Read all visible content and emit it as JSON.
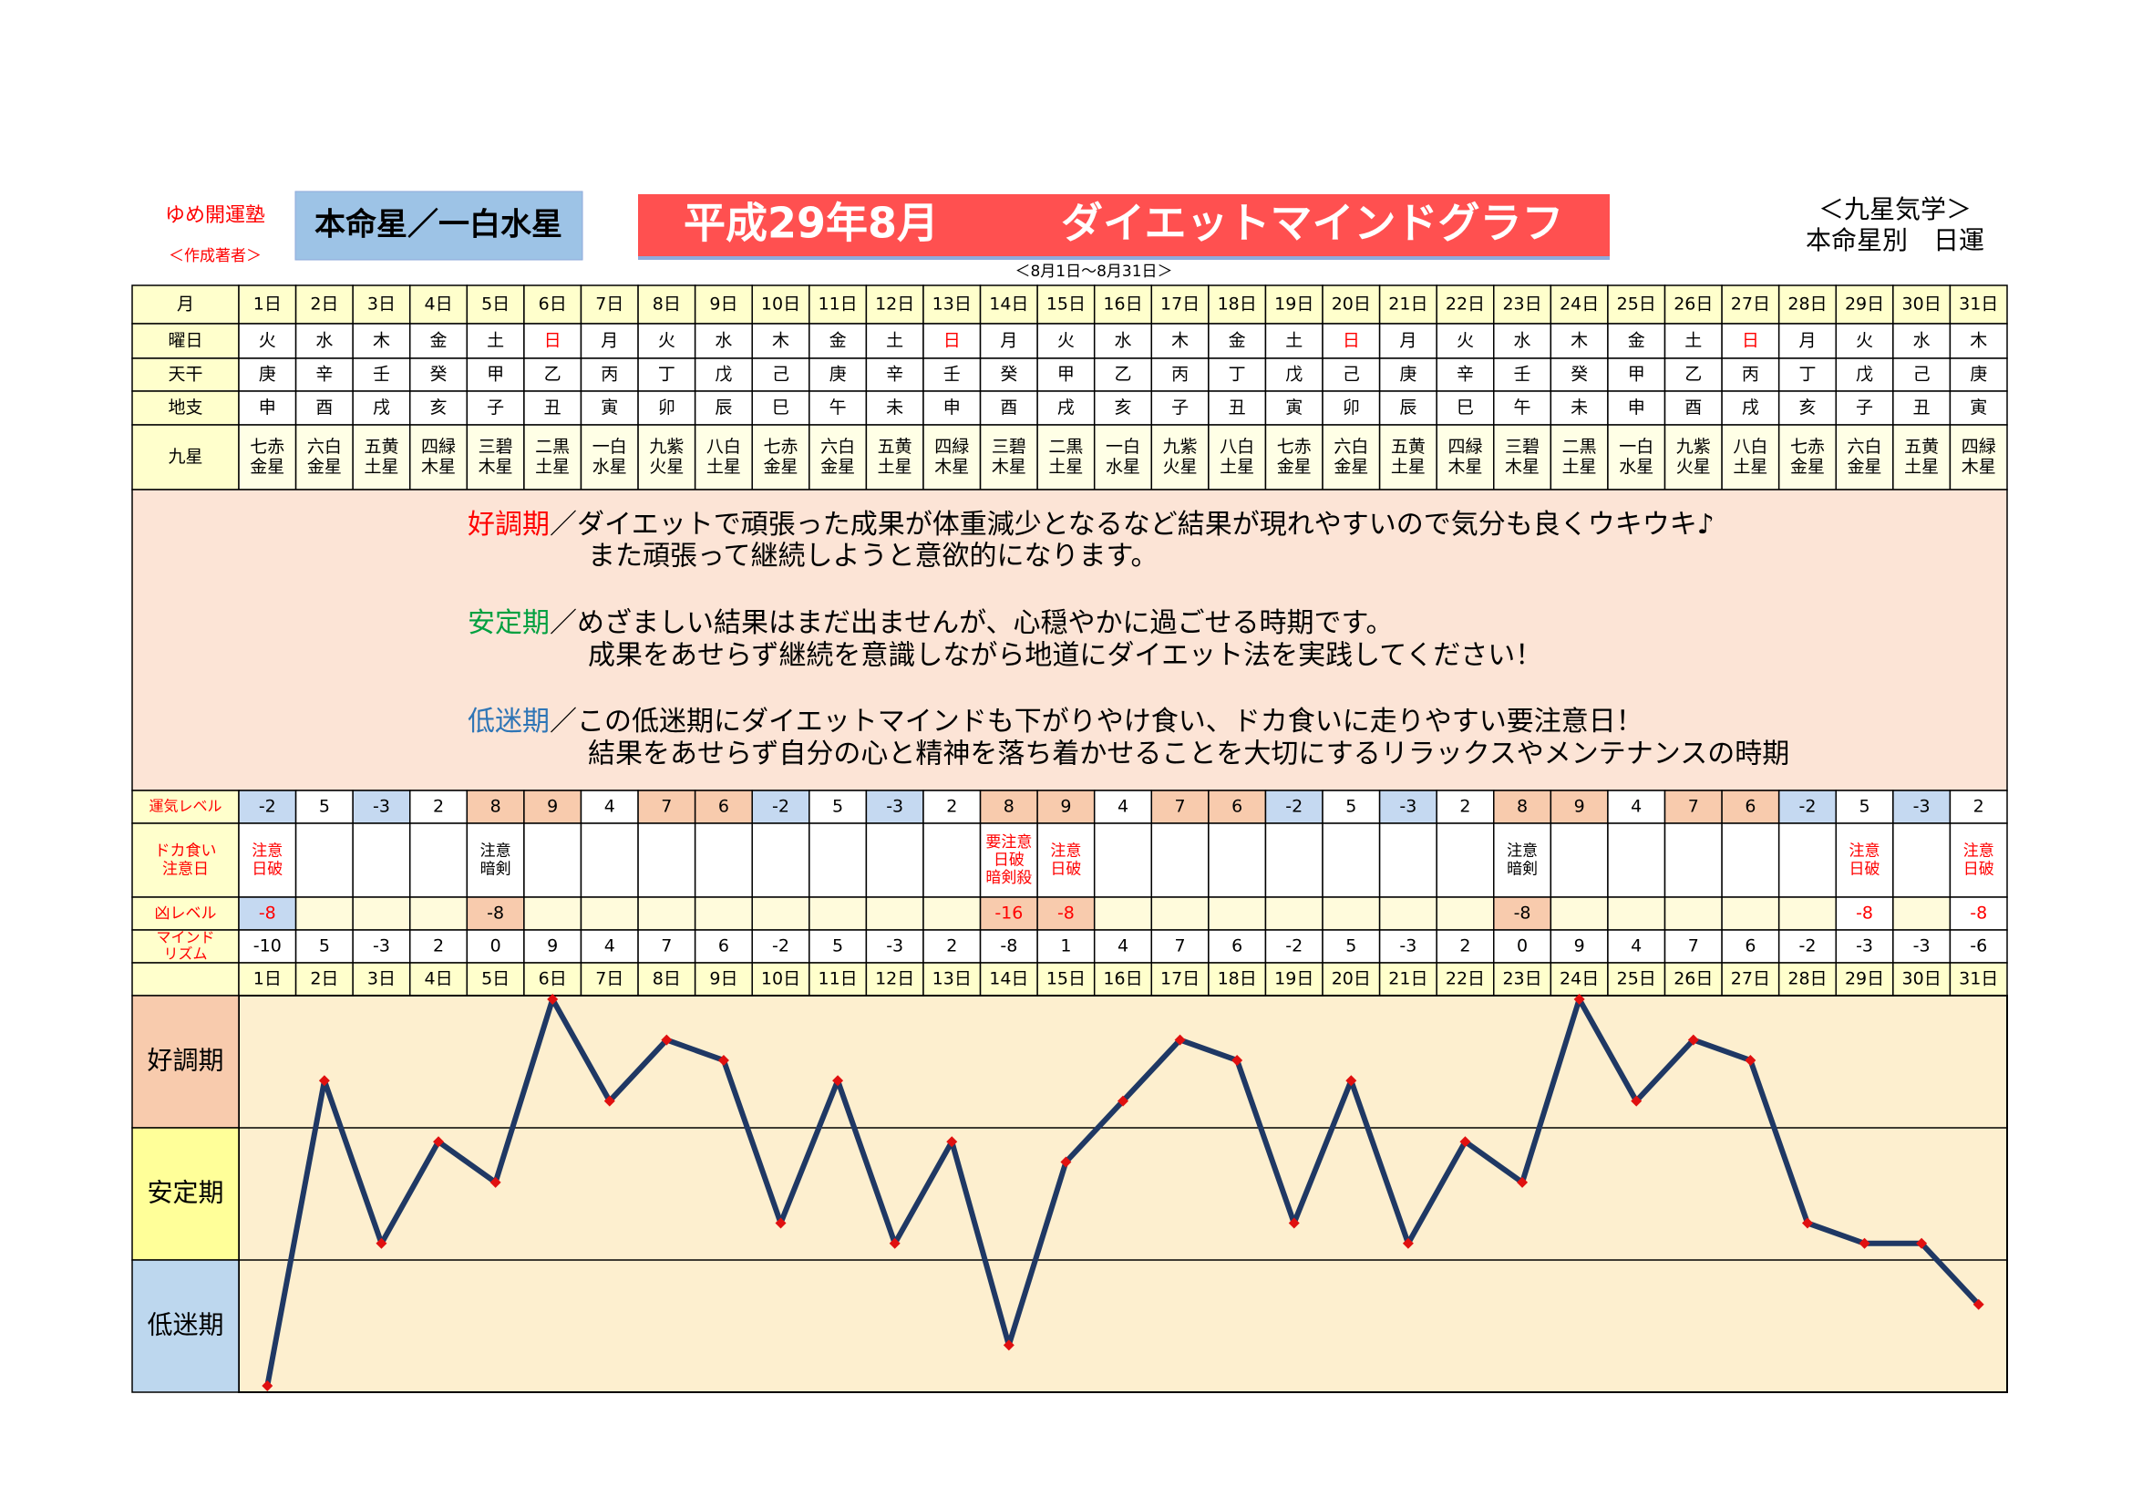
{
  "header": {
    "school": "ゆめ開運塾",
    "author": "＜作成著者＞",
    "star": "本命星／一白水星",
    "title": "平成29年8月",
    "subtitle": "ダイエットマインドグラフ",
    "period": "＜8月1日～8月31日＞",
    "system": "＜九星気学＞",
    "kind": "本命星別　日運"
  },
  "table": {
    "labels": {
      "month": "月",
      "weekday": "曜日",
      "stem": "天干",
      "branch": "地支",
      "star": "九星",
      "luck": "運気レベル",
      "binge": [
        "ドカ食い",
        "注意日"
      ],
      "bad": "凶レベル",
      "mind": [
        "マインド",
        "リズム"
      ]
    },
    "days": [
      "1日",
      "2日",
      "3日",
      "4日",
      "5日",
      "6日",
      "7日",
      "8日",
      "9日",
      "10日",
      "11日",
      "12日",
      "13日",
      "14日",
      "15日",
      "16日",
      "17日",
      "18日",
      "19日",
      "20日",
      "21日",
      "22日",
      "23日",
      "24日",
      "25日",
      "26日",
      "27日",
      "28日",
      "29日",
      "30日",
      "31日"
    ],
    "weekdays": [
      "火",
      "水",
      "木",
      "金",
      "土",
      "日",
      "月",
      "火",
      "水",
      "木",
      "金",
      "土",
      "日",
      "月",
      "火",
      "水",
      "木",
      "金",
      "土",
      "日",
      "月",
      "火",
      "水",
      "木",
      "金",
      "土",
      "日",
      "月",
      "火",
      "水",
      "木"
    ],
    "weekday_colors": [
      "#000000",
      "#000000",
      "#000000",
      "#000000",
      "#000000",
      "#ff0000",
      "#000000",
      "#000000",
      "#000000",
      "#000000",
      "#000000",
      "#000000",
      "#ff0000",
      "#000000",
      "#000000",
      "#000000",
      "#000000",
      "#000000",
      "#000000",
      "#ff0000",
      "#000000",
      "#000000",
      "#000000",
      "#000000",
      "#000000",
      "#000000",
      "#ff0000",
      "#000000",
      "#000000",
      "#000000",
      "#000000"
    ],
    "stems": [
      "庚",
      "辛",
      "壬",
      "癸",
      "甲",
      "乙",
      "丙",
      "丁",
      "戊",
      "己",
      "庚",
      "辛",
      "壬",
      "癸",
      "甲",
      "乙",
      "丙",
      "丁",
      "戊",
      "己",
      "庚",
      "辛",
      "壬",
      "癸",
      "甲",
      "乙",
      "丙",
      "丁",
      "戊",
      "己",
      "庚"
    ],
    "branches": [
      "申",
      "酉",
      "戌",
      "亥",
      "子",
      "丑",
      "寅",
      "卯",
      "辰",
      "巳",
      "午",
      "未",
      "申",
      "酉",
      "戌",
      "亥",
      "子",
      "丑",
      "寅",
      "卯",
      "辰",
      "巳",
      "午",
      "未",
      "申",
      "酉",
      "戌",
      "亥",
      "子",
      "丑",
      "寅"
    ],
    "stars": [
      [
        "七赤",
        "金星"
      ],
      [
        "六白",
        "金星"
      ],
      [
        "五黄",
        "土星"
      ],
      [
        "四緑",
        "木星"
      ],
      [
        "三碧",
        "木星"
      ],
      [
        "二黒",
        "土星"
      ],
      [
        "一白",
        "水星"
      ],
      [
        "九紫",
        "火星"
      ],
      [
        "八白",
        "土星"
      ],
      [
        "七赤",
        "金星"
      ],
      [
        "六白",
        "金星"
      ],
      [
        "五黄",
        "土星"
      ],
      [
        "四緑",
        "木星"
      ],
      [
        "三碧",
        "木星"
      ],
      [
        "二黒",
        "土星"
      ],
      [
        "一白",
        "水星"
      ],
      [
        "九紫",
        "火星"
      ],
      [
        "八白",
        "土星"
      ],
      [
        "七赤",
        "金星"
      ],
      [
        "六白",
        "金星"
      ],
      [
        "五黄",
        "土星"
      ],
      [
        "四緑",
        "木星"
      ],
      [
        "三碧",
        "木星"
      ],
      [
        "二黒",
        "土星"
      ],
      [
        "一白",
        "水星"
      ],
      [
        "九紫",
        "火星"
      ],
      [
        "八白",
        "土星"
      ],
      [
        "七赤",
        "金星"
      ],
      [
        "六白",
        "金星"
      ],
      [
        "五黄",
        "土星"
      ],
      [
        "四緑",
        "木星"
      ]
    ],
    "luck": [
      -2,
      5,
      -3,
      2,
      8,
      9,
      4,
      7,
      6,
      -2,
      5,
      -3,
      2,
      8,
      9,
      4,
      7,
      6,
      -2,
      5,
      -3,
      2,
      8,
      9,
      4,
      7,
      6,
      -2,
      5,
      -3,
      2
    ],
    "binge": [
      {
        "lines": [
          "注意",
          "日破"
        ],
        "color": "#ff0000"
      },
      null,
      null,
      null,
      {
        "lines": [
          "注意",
          "暗剣"
        ],
        "color": "#000000"
      },
      null,
      null,
      null,
      null,
      null,
      null,
      null,
      null,
      {
        "lines": [
          "要注意",
          "日破",
          "暗剣殺"
        ],
        "color": "#ff0000"
      },
      {
        "lines": [
          "注意",
          "日破"
        ],
        "color": "#ff0000"
      },
      null,
      null,
      null,
      null,
      null,
      null,
      null,
      {
        "lines": [
          "注意",
          "暗剣"
        ],
        "color": "#000000"
      },
      null,
      null,
      null,
      null,
      null,
      {
        "lines": [
          "注意",
          "日破"
        ],
        "color": "#ff0000"
      },
      null,
      {
        "lines": [
          "注意",
          "日破"
        ],
        "color": "#ff0000"
      }
    ],
    "bad": [
      -8,
      null,
      null,
      null,
      -8,
      null,
      null,
      null,
      null,
      null,
      null,
      null,
      null,
      -16,
      -8,
      null,
      null,
      null,
      null,
      null,
      null,
      null,
      -8,
      null,
      null,
      null,
      null,
      null,
      -8,
      null,
      -8
    ]
  },
  "notes": [
    {
      "term": "好調期",
      "color": "#ff0000",
      "lines": [
        "／ダイエットで頑張った成果が体重減少となるなど結果が現れやすいので気分も良くウキウキ♪",
        "また頑張って継続しようと意欲的になります。"
      ]
    },
    {
      "term": "安定期",
      "color": "#00a040",
      "lines": [
        "／めざましい結果はまだ出ませんが、心穏やかに過ごせる時期です。",
        "成果をあせらず継続を意識しながら地道にダイエット法を実践してください！"
      ]
    },
    {
      "term": "低迷期",
      "color": "#2e75b6",
      "lines": [
        "／この低迷期にダイエットマインドも下がりやけ食い、ドカ食いに走りやすい要注意日！",
        "結果をあせらず自分の心と精神を落ち着かせることを大切にするリラックスやメンテナンスの時期"
      ]
    }
  ],
  "chart_data": {
    "type": "line",
    "categories": [
      "1日",
      "2日",
      "3日",
      "4日",
      "5日",
      "6日",
      "7日",
      "8日",
      "9日",
      "10日",
      "11日",
      "12日",
      "13日",
      "14日",
      "15日",
      "16日",
      "17日",
      "18日",
      "19日",
      "20日",
      "21日",
      "22日",
      "23日",
      "24日",
      "25日",
      "26日",
      "27日",
      "28日",
      "29日",
      "30日",
      "31日"
    ],
    "values": [
      -10,
      5,
      -3,
      2,
      0,
      9,
      4,
      7,
      6,
      -2,
      5,
      -3,
      2,
      -8,
      1,
      4,
      7,
      6,
      -2,
      5,
      -3,
      2,
      0,
      9,
      4,
      7,
      6,
      -2,
      -3,
      -3,
      -6
    ],
    "ylim": [
      -10,
      9
    ],
    "color": "#1f3864",
    "marker_color": "#e01010",
    "bands": [
      "好調期",
      "安定期",
      "低迷期"
    ],
    "band_colors": [
      "#f8cbad",
      "#ffff99",
      "#bdd7ee"
    ],
    "background": "#fdefcf"
  }
}
